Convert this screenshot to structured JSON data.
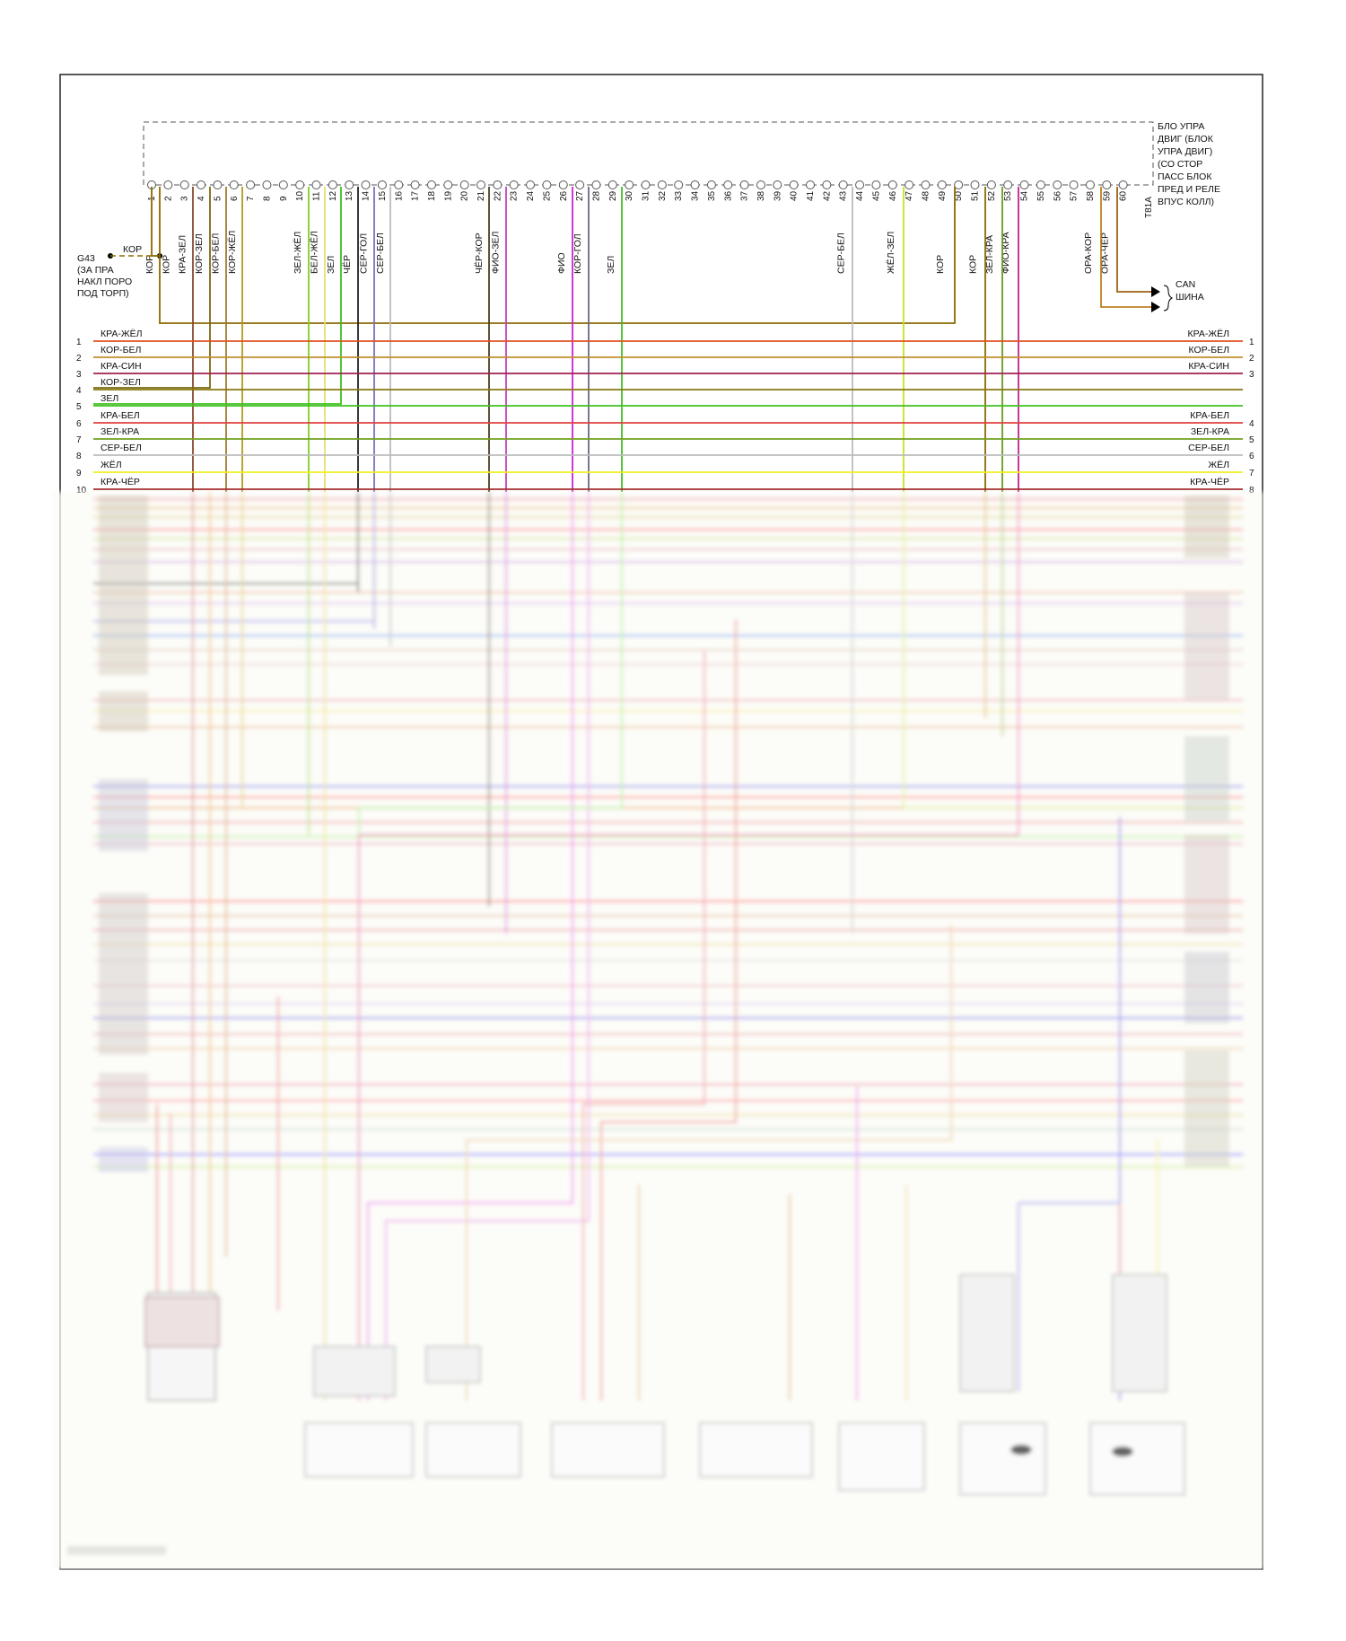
{
  "ecu": {
    "label_lines": [
      "БЛО УПРА",
      "ДВИГ (БЛОК",
      "УПРА ДВИГ)",
      "(СО СТОР",
      "ПАСС БЛОК",
      "ПРЕД И РЕЛЕ",
      "ВПУС КОЛЛ)"
    ],
    "connector": "T81A",
    "pins": [
      "1",
      "2",
      "3",
      "4",
      "5",
      "6",
      "7",
      "8",
      "9",
      "10",
      "11",
      "12",
      "13",
      "14",
      "15",
      "16",
      "17",
      "18",
      "19",
      "20",
      "21",
      "22",
      "23",
      "24",
      "25",
      "26",
      "27",
      "28",
      "29",
      "30",
      "31",
      "32",
      "33",
      "34",
      "35",
      "36",
      "37",
      "38",
      "39",
      "40",
      "41",
      "42",
      "43",
      "44",
      "45",
      "46",
      "47",
      "48",
      "49",
      "50",
      "51",
      "52",
      "53",
      "54",
      "55",
      "56",
      "57",
      "58",
      "59",
      "60"
    ]
  },
  "ground": {
    "label_lines": [
      "G43",
      "(ЗА ПРА",
      "НАКЛ ПОРО",
      "ПОД ТОРП)"
    ],
    "wire_label": "КОР"
  },
  "can_bus": {
    "label_lines": [
      "CAN",
      "ШИНА"
    ]
  },
  "pin_wires": [
    {
      "pin": 1,
      "label": "КОР",
      "color": "#8b6a00"
    },
    {
      "pin": 2,
      "label": "КОР",
      "color": "#8b6a00"
    },
    {
      "pin": 3,
      "label": "КРА-ЗЕЛ",
      "color": "#8b4a2a"
    },
    {
      "pin": 4,
      "label": "КОР-ЗЕЛ",
      "color": "#7a6a10"
    },
    {
      "pin": 5,
      "label": "КОР-БЕЛ",
      "color": "#a07a30"
    },
    {
      "pin": 6,
      "label": "КОР-ЖЁЛ",
      "color": "#b09a20"
    },
    {
      "pin": 10,
      "label": "ЗЕЛ-ЖЁЛ",
      "color": "#7fd020"
    },
    {
      "pin": 11,
      "label": "БЕЛ-ЖЁЛ",
      "color": "#e8e070"
    },
    {
      "pin": 12,
      "label": "ЗЕЛ",
      "color": "#40c020"
    },
    {
      "pin": 13,
      "label": "ЧЁР",
      "color": "#222222"
    },
    {
      "pin": 14,
      "label": "СЕР-ГОЛ",
      "color": "#7a70c0"
    },
    {
      "pin": 15,
      "label": "СЕР-БЕЛ",
      "color": "#bbbbbb"
    },
    {
      "pin": 21,
      "label": "ЧЁР-КОР",
      "color": "#4a4020"
    },
    {
      "pin": 22,
      "label": "ФИО-ЗЕЛ",
      "color": "#c040c0"
    },
    {
      "pin": 26,
      "label": "ФИО",
      "color": "#d020d0"
    },
    {
      "pin": 27,
      "label": "КОР-ГОЛ",
      "color": "#6a6a8a"
    },
    {
      "pin": 29,
      "label": "ЗЕЛ",
      "color": "#40c020"
    },
    {
      "pin": 43,
      "label": "СЕР-БЕЛ",
      "color": "#bbbbbb"
    },
    {
      "pin": 46,
      "label": "ЖЁЛ-ЗЕЛ",
      "color": "#c8e020"
    },
    {
      "pin": 49,
      "label": "КОР",
      "color": "#8b6a00"
    },
    {
      "pin": 51,
      "label": "КОР",
      "color": "#8b6a00"
    },
    {
      "pin": 52,
      "label": "ЗЕЛ-КРА",
      "color": "#6a9a20"
    },
    {
      "pin": 53,
      "label": "ФИО-КРА",
      "color": "#c02090"
    },
    {
      "pin": 58,
      "label": "ОРА-КОР",
      "color": "#c08020"
    },
    {
      "pin": 59,
      "label": "ОРА-ЧЁР",
      "color": "#a06010"
    }
  ],
  "left_buses": [
    {
      "num": "1",
      "label": "КРА-ЖЁЛ",
      "color": "#e05020"
    },
    {
      "num": "2",
      "label": "КОР-БЕЛ",
      "color": "#c09030"
    },
    {
      "num": "3",
      "label": "КРА-СИН",
      "color": "#a02050"
    },
    {
      "num": "4",
      "label": "КОР-ЗЕЛ",
      "color": "#8a7a10"
    },
    {
      "num": "5",
      "label": "ЗЕЛ",
      "color": "#40c020"
    },
    {
      "num": "6",
      "label": "КРА-БЕЛ",
      "color": "#e04040"
    },
    {
      "num": "7",
      "label": "ЗЕЛ-КРА",
      "color": "#70a020"
    },
    {
      "num": "8",
      "label": "СЕР-БЕЛ",
      "color": "#bbbbbb"
    },
    {
      "num": "9",
      "label": "ЖЁЛ",
      "color": "#f0f020"
    },
    {
      "num": "10",
      "label": "КРА-ЧЁР",
      "color": "#a02020"
    }
  ],
  "right_buses": [
    {
      "num": "1",
      "label": "КРА-ЖЁЛ"
    },
    {
      "num": "2",
      "label": "КОР-БЕЛ"
    },
    {
      "num": "3",
      "label": "КРА-СИН"
    },
    {
      "num": "4",
      "label": "КРА-БЕЛ"
    },
    {
      "num": "5",
      "label": "ЗЕЛ-КРА"
    },
    {
      "num": "6",
      "label": "СЕР-БЕЛ"
    },
    {
      "num": "7",
      "label": "ЖЁЛ"
    },
    {
      "num": "8",
      "label": "КРА-ЧЁР"
    }
  ]
}
